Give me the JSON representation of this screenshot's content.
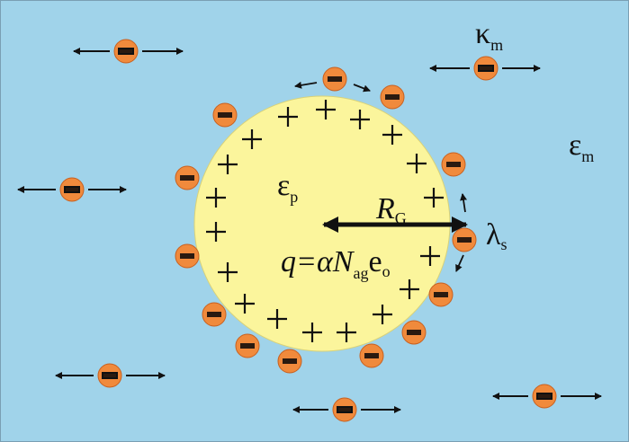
{
  "labels": {
    "medium_kappa": {
      "symbol": "κ",
      "subscript": "m"
    },
    "medium_epsilon": {
      "symbol": "ε",
      "subscript": "m"
    },
    "particle_epsilon": {
      "symbol": "ε",
      "subscript": "p"
    },
    "radius": {
      "symbol": "R",
      "subscript": "G"
    },
    "surface_conductance": {
      "symbol": "λ",
      "subscript": "s"
    },
    "charge": {
      "parts": [
        "q=αN",
        "ag",
        "e",
        "o"
      ]
    }
  }
}
